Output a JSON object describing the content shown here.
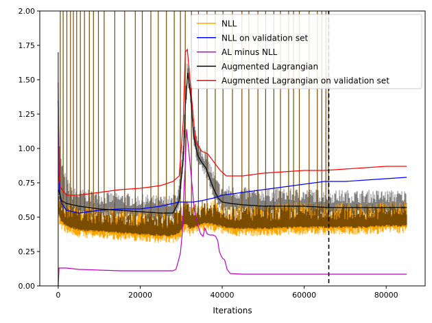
{
  "chart_data": {
    "type": "line",
    "title": "",
    "xlabel": "Iterations",
    "ylabel": "",
    "xlim": [
      -4500,
      89500
    ],
    "ylim": [
      0,
      2.0
    ],
    "xticks": [
      0,
      20000,
      40000,
      60000,
      80000
    ],
    "xtick_labels": [
      "0",
      "20000",
      "40000",
      "60000",
      "80000"
    ],
    "yticks": [
      0,
      0.25,
      0.5,
      0.75,
      1.0,
      1.25,
      1.5,
      1.75,
      2.0
    ],
    "ytick_labels": [
      "0.00",
      "0.25",
      "0.50",
      "0.75",
      "1.00",
      "1.25",
      "1.50",
      "1.75",
      "2.00"
    ],
    "grid": false,
    "legend_position": "top-right",
    "vline": {
      "x": 66000,
      "style": "dashed",
      "color": "#000000"
    },
    "spike_x": [
      500,
      1200,
      2100,
      3000,
      3700,
      4500,
      5400,
      6400,
      7600,
      8600,
      9800,
      11200,
      13800,
      16200,
      18800,
      20500,
      22600,
      24400,
      26400,
      28300,
      29800,
      31000,
      32500,
      34200,
      36300,
      38300,
      40200,
      42500,
      44800,
      46500,
      48700,
      50600,
      52600,
      54200,
      56200,
      57400,
      58800,
      61200,
      63200,
      64300,
      65300,
      65900
    ],
    "series": [
      {
        "name": "NLL",
        "color": "#ffa500",
        "x": [
          0,
          300,
          800,
          2000,
          5000,
          10000,
          15000,
          20000,
          25000,
          28000,
          29500,
          30500,
          31200,
          32000,
          34000,
          36000,
          38000,
          39500,
          40500,
          43000,
          50000,
          60000,
          66000,
          70000,
          75000,
          80000,
          85000
        ],
        "y": [
          0.55,
          0.52,
          0.48,
          0.45,
          0.42,
          0.41,
          0.4,
          0.39,
          0.38,
          0.38,
          0.4,
          0.45,
          0.47,
          0.43,
          0.45,
          0.47,
          0.46,
          0.45,
          0.44,
          0.43,
          0.43,
          0.44,
          0.44,
          0.44,
          0.44,
          0.45,
          0.45
        ]
      },
      {
        "name": "NLL on validation set",
        "color": "#0000ff",
        "x": [
          0,
          300,
          800,
          2000,
          5000,
          10000,
          15000,
          20000,
          25000,
          28000,
          29500,
          30500,
          31500,
          33000,
          35000,
          38000,
          40000,
          45000,
          50000,
          55000,
          60000,
          65000,
          70000,
          75000,
          80000,
          85000
        ],
        "y": [
          1.35,
          0.68,
          0.6,
          0.55,
          0.53,
          0.55,
          0.56,
          0.56,
          0.58,
          0.6,
          0.61,
          0.61,
          0.61,
          0.61,
          0.62,
          0.64,
          0.66,
          0.68,
          0.7,
          0.72,
          0.74,
          0.76,
          0.76,
          0.77,
          0.78,
          0.79
        ]
      },
      {
        "name": "AL minus NLL",
        "color": "#bf00bf",
        "x": [
          0,
          200,
          500,
          2000,
          5000,
          10000,
          15000,
          20000,
          25000,
          28000,
          28700,
          29200,
          29800,
          30300,
          30700,
          31000,
          31300,
          31800,
          32500,
          33200,
          34000,
          34700,
          35300,
          35800,
          36300,
          37000,
          37800,
          38400,
          38900,
          39300,
          39700,
          40100,
          40600,
          41200,
          42000,
          45000,
          50000,
          60000,
          70000,
          80000,
          85000
        ],
        "y": [
          0.0,
          0.13,
          0.13,
          0.13,
          0.12,
          0.115,
          0.11,
          0.11,
          0.11,
          0.11,
          0.12,
          0.17,
          0.24,
          0.4,
          0.72,
          0.88,
          1.14,
          1.0,
          0.78,
          0.55,
          0.45,
          0.38,
          0.36,
          0.42,
          0.38,
          0.37,
          0.37,
          0.36,
          0.33,
          0.25,
          0.22,
          0.2,
          0.19,
          0.12,
          0.09,
          0.085,
          0.085,
          0.085,
          0.085,
          0.085,
          0.085
        ]
      },
      {
        "name": "Augmented Lagrangian",
        "color": "#000000",
        "x": [
          0,
          300,
          800,
          2000,
          5000,
          10000,
          15000,
          20000,
          25000,
          28000,
          29500,
          30500,
          31000,
          31600,
          32300,
          33000,
          34000,
          35000,
          36000,
          37000,
          38000,
          39000,
          40000,
          42000,
          45000,
          50000,
          60000,
          66000,
          70000,
          75000,
          80000,
          85000
        ],
        "y": [
          0.7,
          0.68,
          0.62,
          0.6,
          0.58,
          0.56,
          0.55,
          0.54,
          0.53,
          0.53,
          0.62,
          0.92,
          1.3,
          1.55,
          1.38,
          1.1,
          0.95,
          0.9,
          0.86,
          0.78,
          0.7,
          0.64,
          0.61,
          0.6,
          0.59,
          0.58,
          0.58,
          0.57,
          0.57,
          0.57,
          0.57,
          0.57
        ]
      },
      {
        "name": "Augmented Lagrangian on validation set",
        "color": "#ff0000",
        "x": [
          0,
          200,
          500,
          1000,
          2000,
          5000,
          10000,
          15000,
          20000,
          25000,
          28000,
          29500,
          30500,
          31000,
          31500,
          32300,
          33500,
          35000,
          36500,
          38000,
          39500,
          41000,
          45000,
          50000,
          55000,
          60000,
          65000,
          70000,
          75000,
          80000,
          85000
        ],
        "y": [
          1.48,
          0.8,
          0.72,
          0.7,
          0.66,
          0.66,
          0.68,
          0.7,
          0.71,
          0.73,
          0.76,
          0.8,
          1.2,
          1.7,
          1.72,
          1.45,
          1.05,
          0.98,
          0.96,
          0.9,
          0.84,
          0.8,
          0.8,
          0.82,
          0.83,
          0.84,
          0.84,
          0.85,
          0.86,
          0.87,
          0.87
        ]
      }
    ]
  }
}
